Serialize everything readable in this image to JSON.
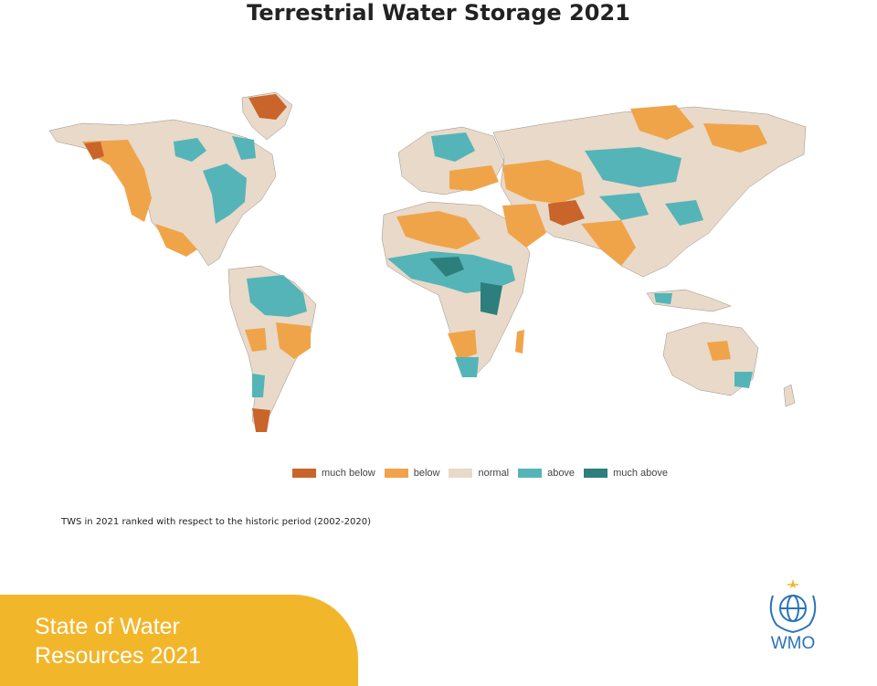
{
  "title": "Terrestrial Water Storage 2021",
  "legend": [
    {
      "label": "much below",
      "color": "#c9652a"
    },
    {
      "label": "below",
      "color": "#f0a44a"
    },
    {
      "label": "normal",
      "color": "#e8d9c9"
    },
    {
      "label": "above",
      "color": "#55b4b8"
    },
    {
      "label": "much above",
      "color": "#2c7f7c"
    }
  ],
  "caption": "TWS in 2021 ranked with respect to the historic period (2002-2020)",
  "banner": {
    "line1": "State of Water",
    "line2": "Resources 2021",
    "color": "#f2b62b"
  },
  "logo": {
    "text": "WMO",
    "icon": "un-wreath-globe-icon",
    "color": "#2a73b8"
  }
}
